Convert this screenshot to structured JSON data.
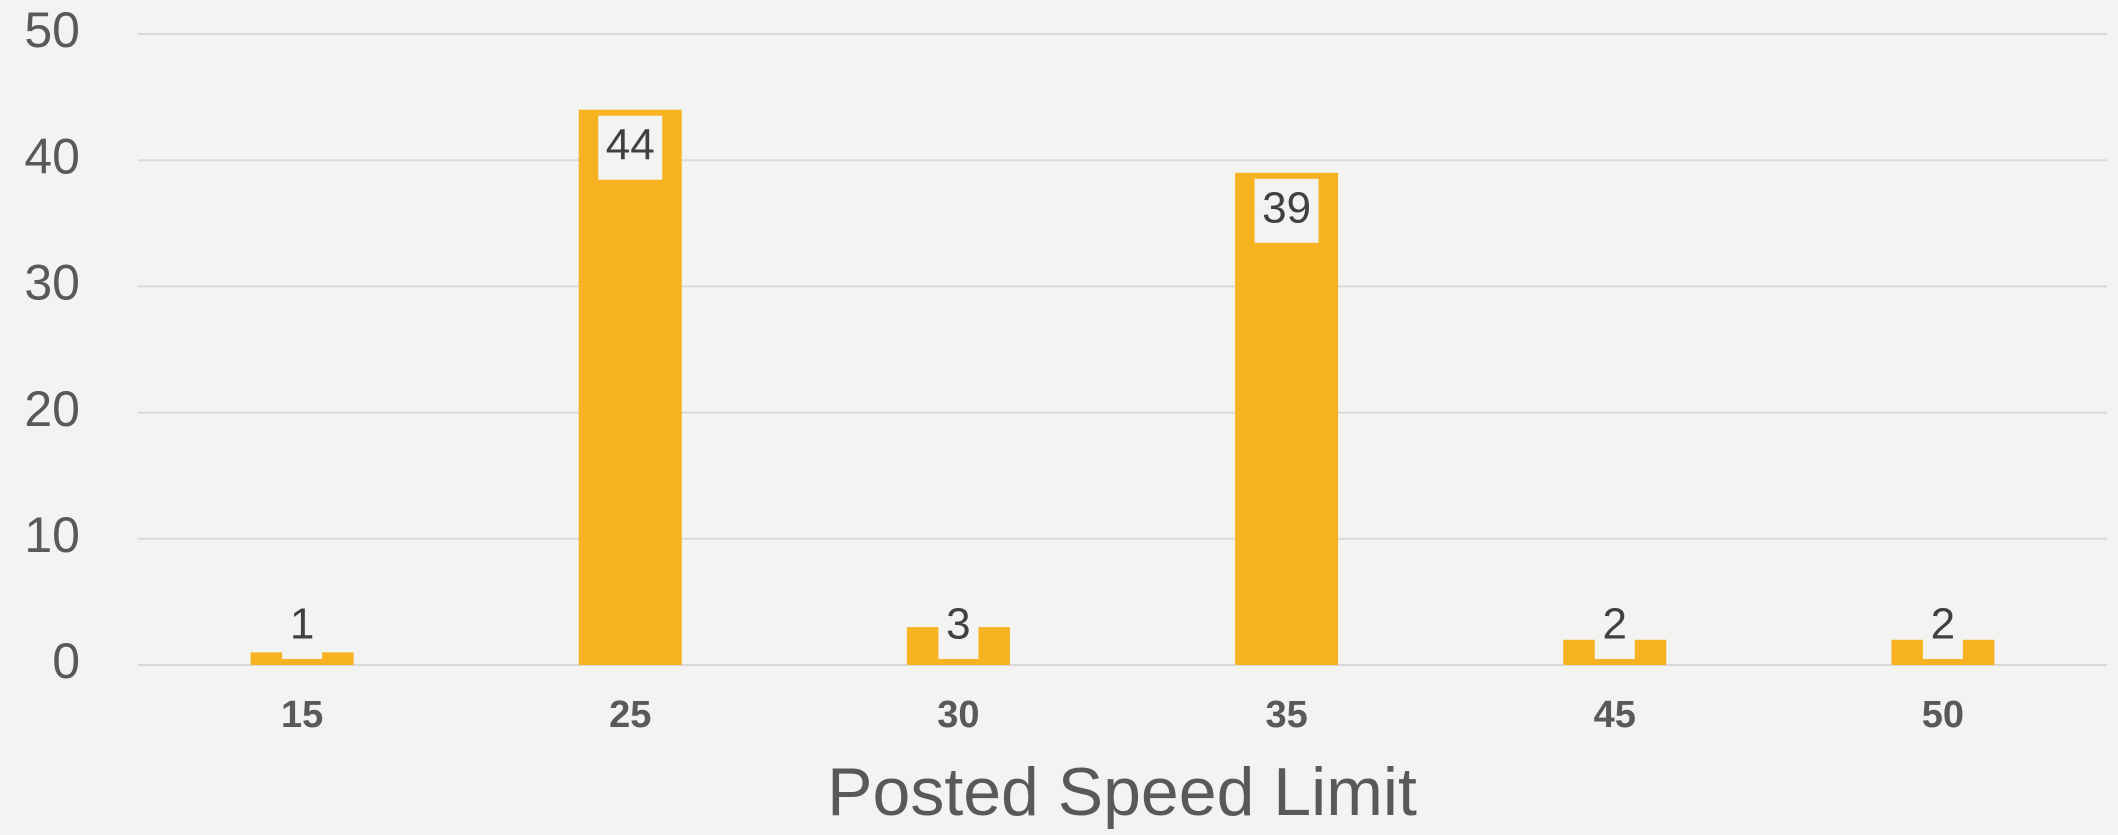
{
  "chart_data": {
    "type": "bar",
    "x_label": "Posted Speed Limit",
    "categories": [
      "15",
      "25",
      "30",
      "35",
      "45",
      "50"
    ],
    "values": [
      1,
      44,
      3,
      39,
      2,
      2
    ],
    "color": "#f6b221",
    "ylim": [
      0,
      50
    ],
    "yticks": [
      0,
      10,
      20,
      30,
      40,
      50
    ],
    "grid": true
  }
}
